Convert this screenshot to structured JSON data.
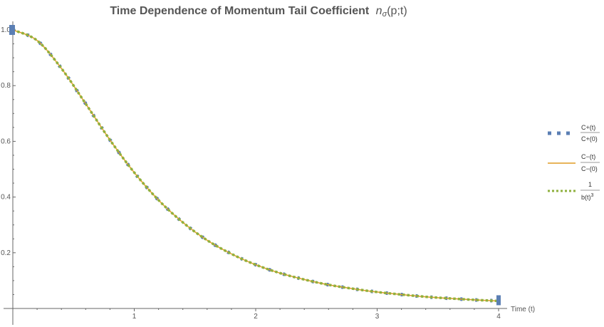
{
  "chart_data": {
    "type": "line",
    "title": "Time Dependence of Momentum Tail Coefficient",
    "title_math": "n",
    "title_sub": "σ",
    "title_args": "(p;t)",
    "xlabel": "Time (t)",
    "ylabel": "",
    "xlim": [
      0,
      4.05
    ],
    "ylim": [
      0,
      1.02
    ],
    "x_ticks": [
      "1",
      "2",
      "3",
      "4"
    ],
    "y_ticks": [
      "0.2",
      "0.4",
      "0.6",
      "0.8",
      "1.0"
    ],
    "grid": false,
    "legend_position": "right",
    "series": [
      {
        "name_num": "C+(t)",
        "name_den": "C+(0)",
        "style": "dashed-thick",
        "color": "#5b7fb4",
        "x": [
          0,
          0.2,
          0.4,
          0.6,
          0.8,
          1.0,
          1.2,
          1.4,
          1.6,
          1.8,
          2.0,
          2.2,
          2.4,
          2.6,
          2.8,
          3.0,
          3.2,
          3.4,
          3.6,
          3.8,
          4.0
        ],
        "y": [
          1.0,
          0.962,
          0.862,
          0.735,
          0.605,
          0.488,
          0.389,
          0.309,
          0.245,
          0.196,
          0.157,
          0.127,
          0.104,
          0.085,
          0.071,
          0.059,
          0.05,
          0.042,
          0.036,
          0.031,
          0.027
        ]
      },
      {
        "name_num": "C−(t)",
        "name_den": "C−(0)",
        "style": "solid",
        "color": "#e19c24",
        "x": [
          0,
          0.2,
          0.4,
          0.6,
          0.8,
          1.0,
          1.2,
          1.4,
          1.6,
          1.8,
          2.0,
          2.2,
          2.4,
          2.6,
          2.8,
          3.0,
          3.2,
          3.4,
          3.6,
          3.8,
          4.0
        ],
        "y": [
          1.0,
          0.962,
          0.862,
          0.735,
          0.605,
          0.488,
          0.389,
          0.309,
          0.245,
          0.196,
          0.157,
          0.127,
          0.104,
          0.085,
          0.071,
          0.059,
          0.05,
          0.042,
          0.036,
          0.031,
          0.027
        ]
      },
      {
        "name_num": "1",
        "name_den": "b(t)",
        "name_exp": "3",
        "style": "dotted",
        "color": "#8fb03e",
        "x": [
          0,
          0.2,
          0.4,
          0.6,
          0.8,
          1.0,
          1.2,
          1.4,
          1.6,
          1.8,
          2.0,
          2.2,
          2.4,
          2.6,
          2.8,
          3.0,
          3.2,
          3.4,
          3.6,
          3.8,
          4.0
        ],
        "y": [
          1.0,
          0.962,
          0.862,
          0.735,
          0.605,
          0.488,
          0.389,
          0.309,
          0.245,
          0.196,
          0.157,
          0.127,
          0.104,
          0.085,
          0.071,
          0.059,
          0.05,
          0.042,
          0.036,
          0.031,
          0.027
        ]
      }
    ]
  }
}
